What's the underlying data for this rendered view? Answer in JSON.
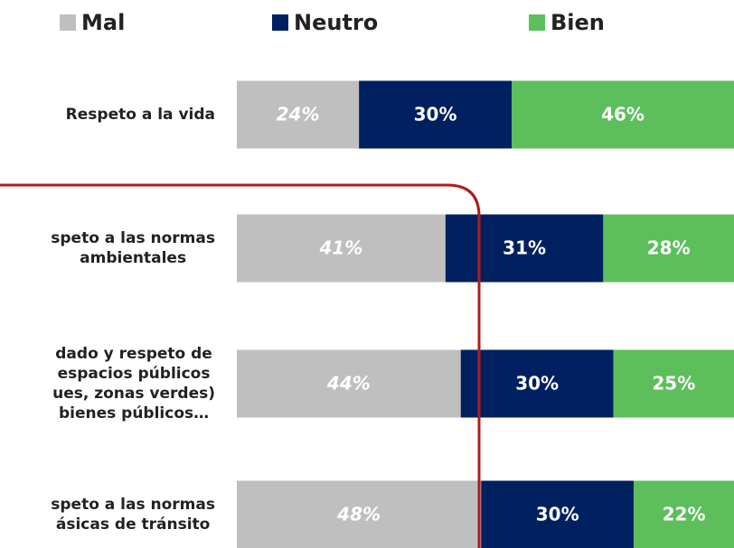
{
  "chart_data": {
    "type": "stacked-bar-horizontal",
    "categories": [
      "Respeto a la vida",
      "speto a las normas\nambientales",
      "dado y respeto de\nespacios públicos\nues, zonas verdes)\nbienes públicos…",
      "speto a las normas\násicas de tránsito"
    ],
    "series": [
      {
        "name": "Mal",
        "color": "#bfbfbf",
        "values": [
          24,
          41,
          44,
          48
        ],
        "value_labels": [
          "24%",
          "41%",
          "44%",
          "48%"
        ]
      },
      {
        "name": "Neutro",
        "color": "#002060",
        "values": [
          30,
          31,
          30,
          30
        ],
        "value_labels": [
          "30%",
          "31%",
          "30%",
          "30%"
        ]
      },
      {
        "name": "Bien",
        "color": "#5cbf5c",
        "values": [
          46,
          28,
          25,
          22
        ],
        "value_labels": [
          "46%",
          "28%",
          "25%",
          "22%"
        ]
      }
    ],
    "xlim": [
      0,
      100
    ]
  }
}
